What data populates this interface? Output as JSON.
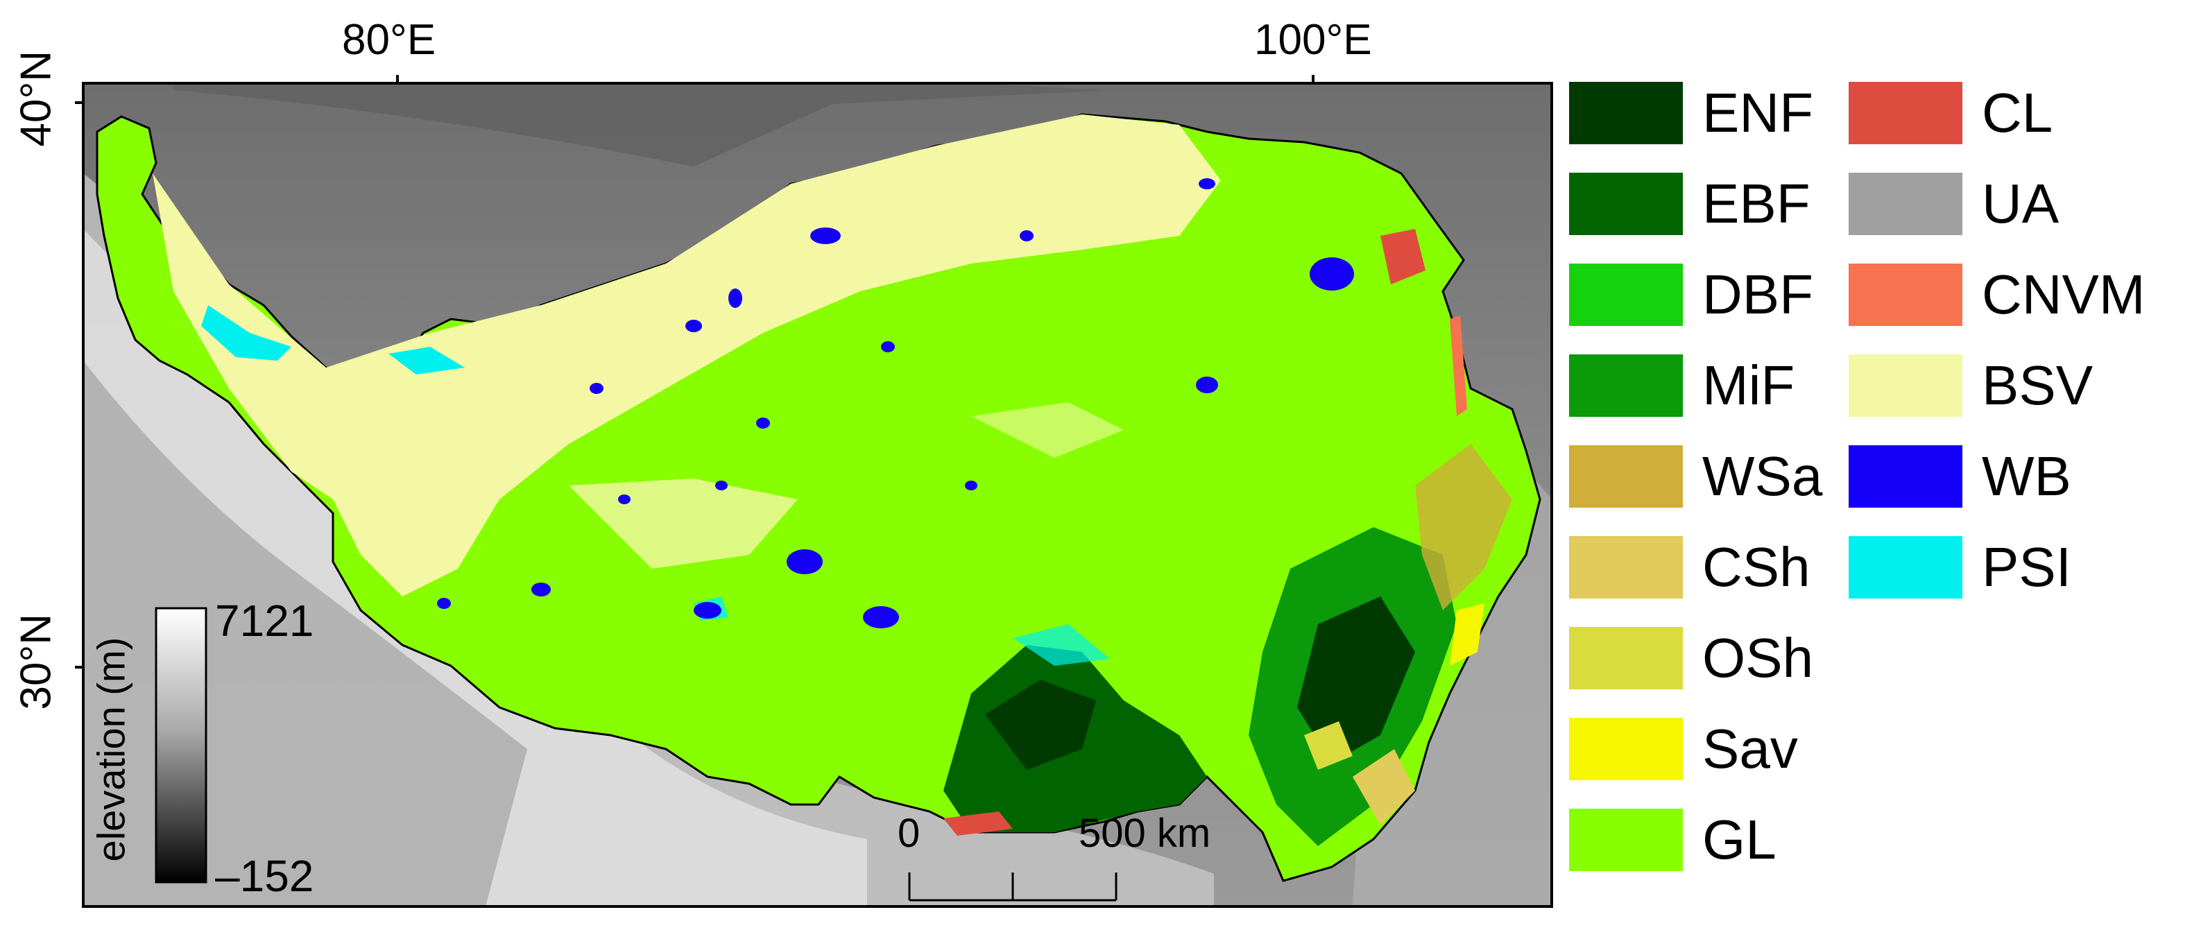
{
  "axes": {
    "lon_labels": [
      "80°E",
      "100°E"
    ],
    "lat_labels": [
      "40°N",
      "30°N"
    ]
  },
  "elevation_bar": {
    "label": "elevation (m)",
    "max": "7121",
    "min": "–152"
  },
  "scale_bar": {
    "start": "0",
    "end": "500 km"
  },
  "legend": [
    {
      "code": "ENF",
      "color": "#003a00"
    },
    {
      "code": "EBF",
      "color": "#006400"
    },
    {
      "code": "DBF",
      "color": "#16d10d"
    },
    {
      "code": "MiF",
      "color": "#0a9a0a"
    },
    {
      "code": "WSa",
      "color": "#cfae3a"
    },
    {
      "code": "CSh",
      "color": "#e1cb5a"
    },
    {
      "code": "OSh",
      "color": "#d9dc3c"
    },
    {
      "code": "Sav",
      "color": "#f6f600"
    },
    {
      "code": "GL",
      "color": "#88ff00"
    },
    {
      "code": "CL",
      "color": "#de4c40"
    },
    {
      "code": "UA",
      "color": "#a0a0a0"
    },
    {
      "code": "CNVM",
      "color": "#f7734f"
    },
    {
      "code": "BSV",
      "color": "#f4f7a4"
    },
    {
      "code": "WB",
      "color": "#1400f7"
    },
    {
      "code": "PSI",
      "color": "#00f0f0"
    }
  ]
}
